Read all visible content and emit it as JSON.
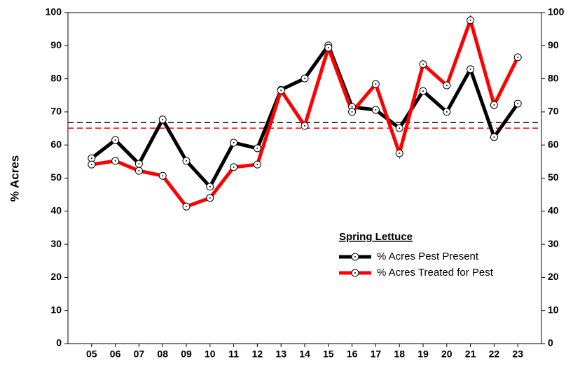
{
  "chart_data": {
    "type": "line",
    "y_axis_label": "% Acres",
    "legend_title": "Spring Lettuce",
    "categories": [
      "05",
      "06",
      "07",
      "08",
      "09",
      "10",
      "11",
      "12",
      "13",
      "14",
      "15",
      "16",
      "17",
      "18",
      "19",
      "20",
      "21",
      "22",
      "23"
    ],
    "series": [
      {
        "name": "% Acres Pest Present",
        "color": "#000000",
        "values": [
          56.0,
          61.5,
          54.3,
          67.7,
          55.2,
          47.4,
          60.7,
          59.0,
          76.7,
          80.1,
          90.1,
          71.5,
          70.6,
          65.1,
          76.3,
          70.0,
          82.9,
          62.4,
          72.5
        ]
      },
      {
        "name": "% Acres Treated for Pest",
        "color": "#ff0000",
        "values": [
          54.1,
          55.2,
          52.2,
          50.7,
          41.4,
          44.0,
          53.3,
          54.1,
          76.5,
          65.8,
          89.4,
          70.0,
          78.4,
          57.5,
          84.4,
          78.0,
          97.7,
          72.1,
          86.5
        ]
      }
    ],
    "reference_lines": [
      {
        "value": 66.8,
        "color": "#000000"
      },
      {
        "value": 65.1,
        "color": "#ff0000"
      }
    ],
    "ylim": [
      0,
      100
    ],
    "yticks": [
      0,
      10,
      20,
      30,
      40,
      50,
      60,
      70,
      80,
      90,
      100
    ],
    "y2lim": [
      0,
      100
    ],
    "y2ticks": [
      0,
      10,
      20,
      30,
      40,
      50,
      60,
      70,
      80,
      90,
      100
    ]
  }
}
